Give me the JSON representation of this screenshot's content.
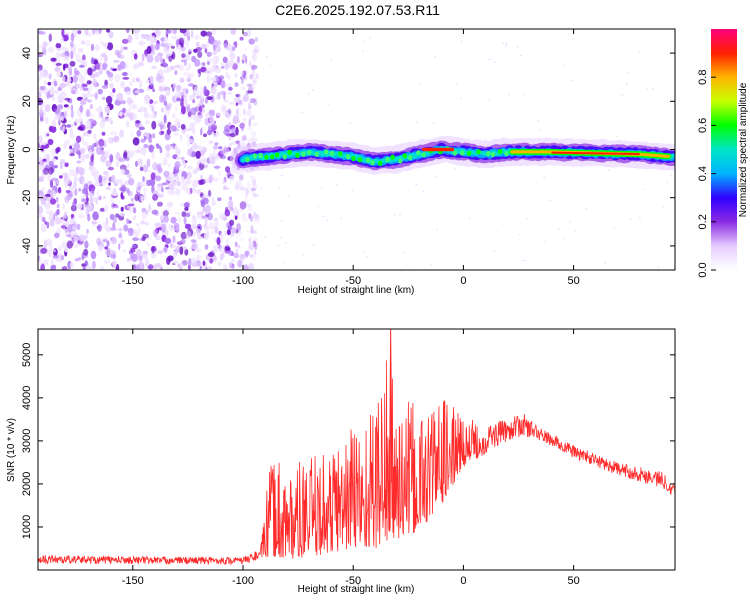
{
  "title": "C2E6.2025.192.07.53.R11",
  "colors": {
    "spectrum_scale": [
      "#ffffff",
      "#e6ccff",
      "#8a2be2",
      "#3000ff",
      "#00b4ff",
      "#00e5c8",
      "#00ff00",
      "#c8ff00",
      "#ffb400",
      "#ff2000",
      "#ff0080"
    ],
    "snr_line": "#ff2a2a"
  },
  "chart_data": [
    {
      "type": "heatmap",
      "xlabel": "Height of straight line (km)",
      "ylabel": "Frequency (Hz)",
      "xlim": [
        -193,
        96
      ],
      "ylim": [
        -50,
        50
      ],
      "xticks": [
        -150,
        -100,
        -50,
        0,
        50
      ],
      "yticks": [
        -40,
        -20,
        0,
        20,
        40
      ],
      "noise_region_x": [
        -193,
        -98
      ],
      "signal_track": {
        "x": [
          -100,
          -90,
          -80,
          -70,
          -60,
          -50,
          -40,
          -30,
          -20,
          -10,
          0,
          10,
          20,
          40,
          60,
          80,
          95
        ],
        "freq": [
          -4,
          -3,
          -2,
          -1,
          -2,
          -3,
          -5,
          -4,
          -2,
          0,
          -1,
          -2,
          -1,
          -1,
          -1.5,
          -2,
          -3
        ]
      },
      "colorbar": {
        "label": "Normalized spectral amplitude",
        "range": [
          0,
          1
        ],
        "ticks": [
          "0.0",
          "0.2",
          "0.4",
          "0.6",
          "0.8"
        ]
      }
    },
    {
      "type": "line",
      "xlabel": "Height of straight line (km)",
      "ylabel": "SNR (10 * v/v)",
      "xlim": [
        -193,
        96
      ],
      "ylim": [
        0,
        5600
      ],
      "xticks": [
        -150,
        -100,
        -50,
        0,
        50
      ],
      "yticks": [
        1000,
        2000,
        3000,
        4000,
        5000
      ],
      "envelope": {
        "x": [
          -193,
          -150,
          -100,
          -92,
          -88,
          -85,
          -80,
          -70,
          -60,
          -50,
          -40,
          -35,
          -30,
          -20,
          -10,
          0,
          10,
          20,
          27,
          35,
          50,
          70,
          90,
          96
        ],
        "low": [
          150,
          140,
          130,
          250,
          300,
          300,
          250,
          300,
          400,
          500,
          500,
          600,
          700,
          900,
          1500,
          2400,
          2700,
          3000,
          3100,
          3000,
          2600,
          2200,
          1900,
          1700
        ],
        "high": [
          350,
          320,
          300,
          500,
          2400,
          2800,
          2400,
          2600,
          2900,
          3600,
          3900,
          5600,
          4100,
          3800,
          4100,
          3600,
          3400,
          3500,
          3650,
          3300,
          2900,
          2500,
          2300,
          2000
        ]
      }
    }
  ]
}
